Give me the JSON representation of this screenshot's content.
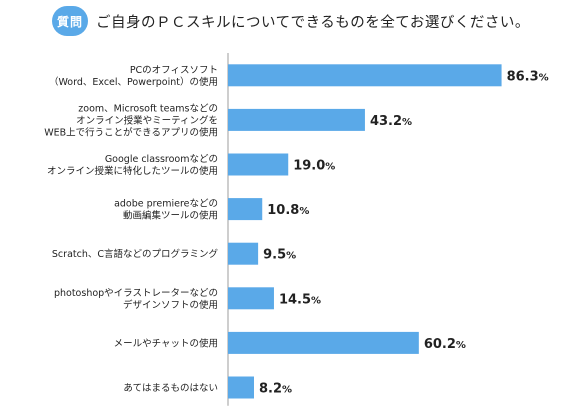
{
  "question": {
    "badge": "質問",
    "title": "ご自身のＰＣスキルについてできるものを全てお選びください。"
  },
  "chart_data": {
    "type": "bar",
    "orientation": "horizontal",
    "unit": "%",
    "categories": [
      [
        "PCのオフィスソフト",
        "（Word、Excel、Powerpoint）の使用"
      ],
      [
        "zoom、Microsoft teamsなどの",
        "オンライン授業やミーティングを",
        "WEB上で行うことができるアプリの使用"
      ],
      [
        "Google classroomなどの",
        "オンライン授業に特化したツールの使用"
      ],
      [
        "adobe premiereなどの",
        "動画編集ツールの使用"
      ],
      [
        "Scratch、C言語などのプログラミング"
      ],
      [
        "photoshopやイラストレーターなどの",
        "デザインソフトの使用"
      ],
      [
        "メールやチャットの使用"
      ],
      [
        "あてはまるものはない"
      ]
    ],
    "values": [
      86.3,
      43.2,
      19.0,
      10.8,
      9.5,
      14.5,
      60.2,
      8.2
    ],
    "value_labels": [
      "86.3",
      "43.2",
      "19.0",
      "10.8",
      "9.5",
      "14.5",
      "60.2",
      "8.2"
    ],
    "xlim": [
      0,
      100
    ],
    "bar_color": "#5aa9e8",
    "axis_color": "#9e9e9e"
  }
}
